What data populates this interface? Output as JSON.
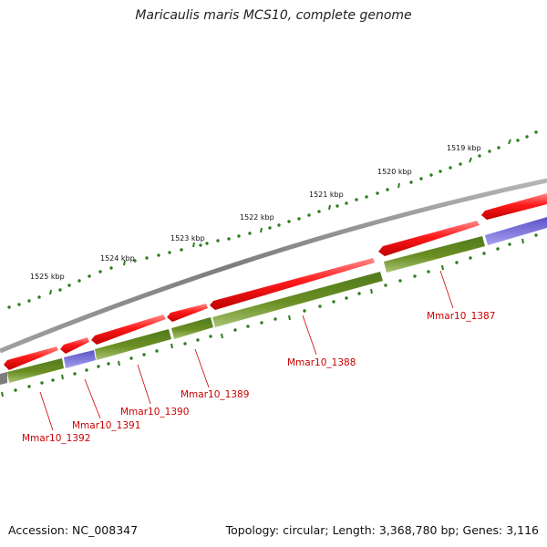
{
  "title": "Maricaulis maris MCS10, complete genome",
  "footer": {
    "accession": "Accession: NC_008347",
    "summary": "Topology: circular; Length: 3,368,780 bp; Genes: 3,116"
  },
  "colors": {
    "backbone": "#8a8a8a",
    "forward_cds": "#ee1111",
    "reverse_feature": "#6b8e23",
    "reverse_blue": "#7b74dd",
    "tick": "#2e7d1e",
    "gene_label": "#cc0000"
  },
  "scale_labels": [
    "1519 kbp",
    "1520 kbp",
    "1521 kbp",
    "1522 kbp",
    "1523 kbp",
    "1524 kbp",
    "1525 kbp"
  ],
  "gene_labels": [
    "Mmar10_1387",
    "Mmar10_1388",
    "Mmar10_1389",
    "Mmar10_1390",
    "Mmar10_1391",
    "Mmar10_1392"
  ]
}
